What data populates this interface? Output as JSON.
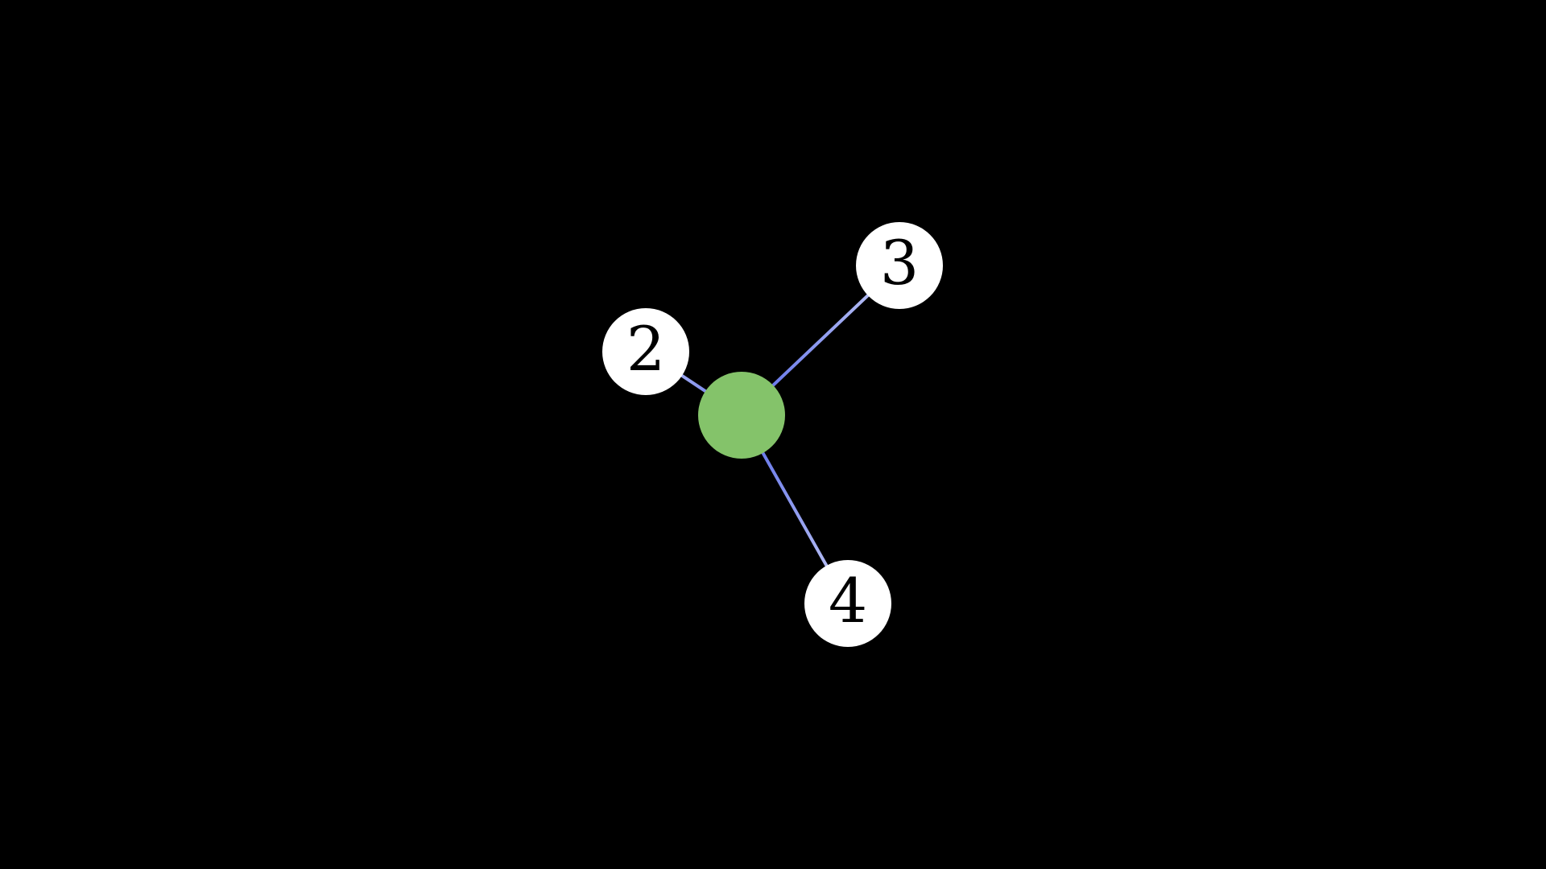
{
  "diagram": {
    "background": "#000000",
    "center_node": {
      "id": "center",
      "label": "",
      "color": "#84C36A"
    },
    "nodes": [
      {
        "id": "n2",
        "label": "2",
        "color": "#FFFFFF"
      },
      {
        "id": "n3",
        "label": "3",
        "color": "#FFFFFF"
      },
      {
        "id": "n4",
        "label": "4",
        "color": "#FFFFFF"
      }
    ],
    "edges": [
      {
        "from": "center",
        "to": "n2",
        "color_near_center": "#5568E8",
        "color_near_leaf": "#C8CEF6"
      },
      {
        "from": "center",
        "to": "n3",
        "color_near_center": "#5568E8",
        "color_near_leaf": "#C8CEF6"
      },
      {
        "from": "center",
        "to": "n4",
        "color_near_center": "#5568E8",
        "color_near_leaf": "#C8CEF6"
      }
    ]
  }
}
